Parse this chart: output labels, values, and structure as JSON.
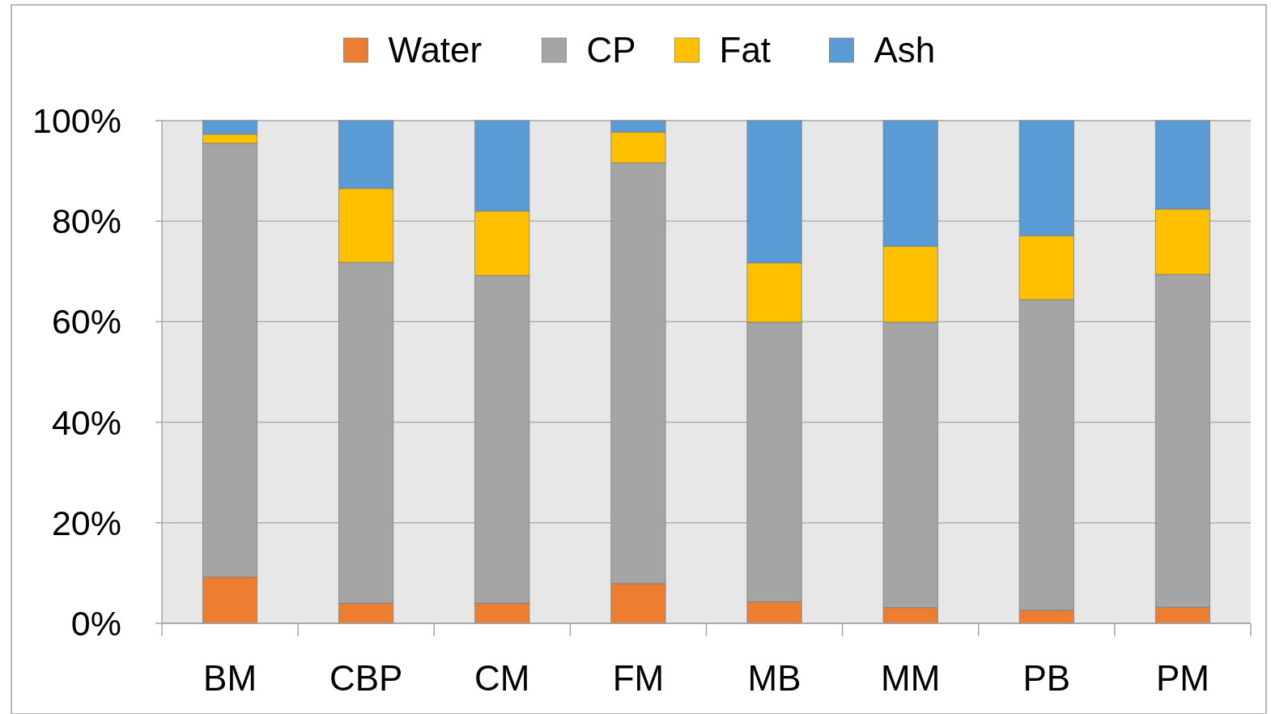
{
  "chart_data": {
    "type": "bar",
    "stacked": true,
    "categories": [
      "BM",
      "CBP",
      "CM",
      "FM",
      "MB",
      "MM",
      "PB",
      "PM"
    ],
    "series": [
      {
        "name": "Water",
        "color": "#ed7d31",
        "values": [
          9.2,
          4.0,
          4.0,
          7.9,
          4.3,
          3.1,
          2.6,
          3.2
        ]
      },
      {
        "name": "CP",
        "color": "#a5a5a5",
        "values": [
          86.3,
          67.8,
          65.2,
          83.7,
          55.6,
          56.8,
          61.8,
          66.2
        ]
      },
      {
        "name": "Fat",
        "color": "#ffc000",
        "values": [
          1.8,
          14.7,
          12.8,
          6.1,
          11.8,
          15.1,
          12.7,
          13.0
        ]
      },
      {
        "name": "Ash",
        "color": "#5b9bd5",
        "values": [
          2.7,
          13.5,
          18.0,
          2.3,
          28.3,
          25.0,
          22.9,
          17.6
        ]
      }
    ],
    "ylim": [
      0,
      100
    ],
    "yticks": [
      {
        "value": 0,
        "label": "0%"
      },
      {
        "value": 20,
        "label": "20%"
      },
      {
        "value": 40,
        "label": "40%"
      },
      {
        "value": 60,
        "label": "60%"
      },
      {
        "value": 80,
        "label": "80%"
      },
      {
        "value": 100,
        "label": "100%"
      }
    ],
    "grid": "y",
    "legend": "top"
  }
}
